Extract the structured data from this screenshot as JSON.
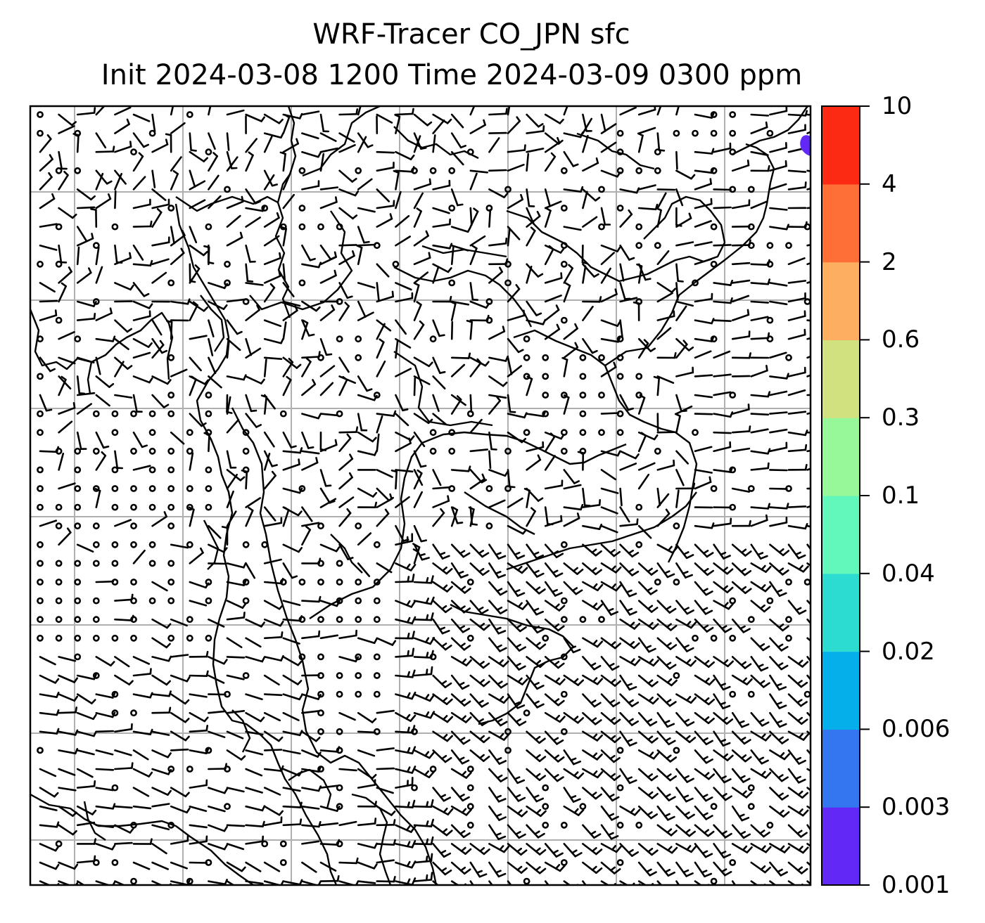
{
  "title": {
    "line1": "WRF-Tracer CO_JPN sfc",
    "line2": "Init 2024-03-08 1200 Time 2024-03-09 0300 ppm"
  },
  "colorbar": {
    "levels": [
      "0.001",
      "0.003",
      "0.006",
      "0.02",
      "0.04",
      "0.1",
      "0.3",
      "0.6",
      "2",
      "4",
      "10"
    ],
    "colors": [
      "#6128f6",
      "#3475f0",
      "#05b0ea",
      "#2ddcd0",
      "#62f8bb",
      "#96f898",
      "#d2e17f",
      "#fdae61",
      "#fe6e37",
      "#fd2a13"
    ]
  },
  "map": {
    "tracer_patch_color": "#6128f6",
    "gridline_color": "#b0b0b0",
    "coastline_color": "#000000",
    "wind_barb_color": "#000000"
  }
}
